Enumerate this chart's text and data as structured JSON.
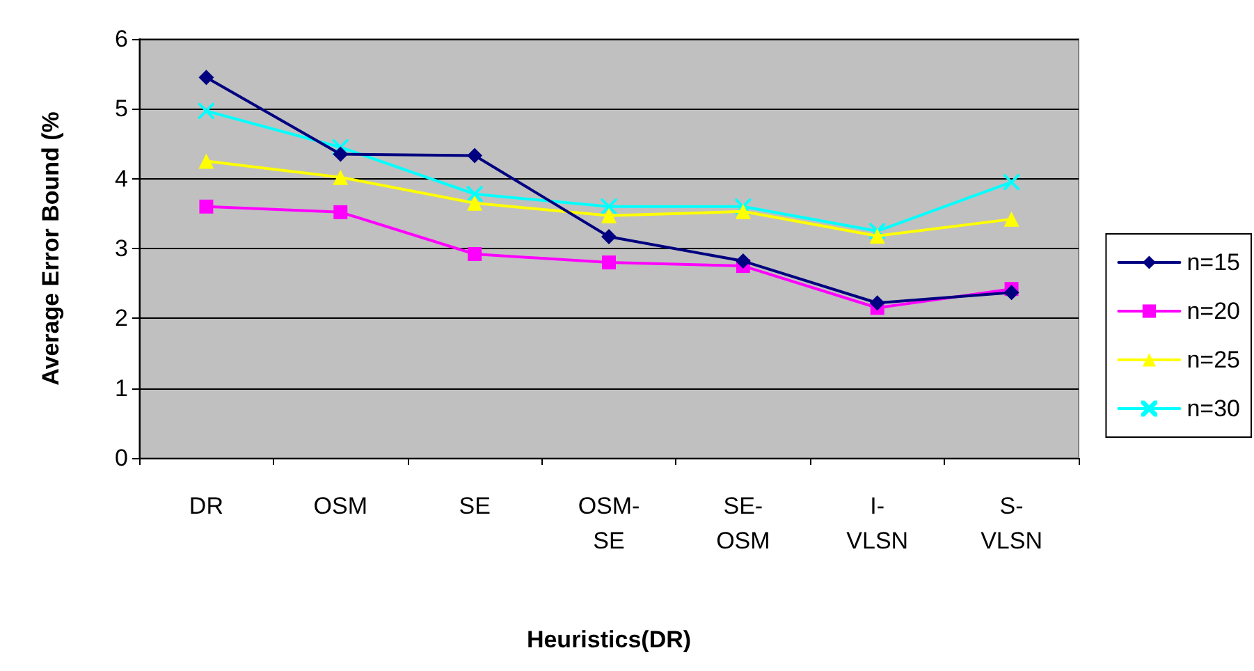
{
  "chart_data": {
    "type": "line",
    "xlabel": "Heuristics(DR)",
    "ylabel": "Average Error Bound (%",
    "categories": [
      "DR",
      "OSM",
      "SE",
      "OSM-SE",
      "SE-OSM",
      "I-VLSN",
      "S-VLSN"
    ],
    "series": [
      {
        "name": "n=15",
        "color": "#000080",
        "marker": "diamond",
        "values": [
          5.45,
          4.35,
          4.33,
          3.17,
          2.82,
          2.22,
          2.37
        ]
      },
      {
        "name": "n=20",
        "color": "#ff00ff",
        "marker": "square",
        "values": [
          3.6,
          3.52,
          2.92,
          2.8,
          2.75,
          2.15,
          2.42
        ]
      },
      {
        "name": "n=25",
        "color": "#ffff00",
        "marker": "triangle",
        "values": [
          4.25,
          4.02,
          3.65,
          3.47,
          3.53,
          3.18,
          3.42
        ]
      },
      {
        "name": "n=30",
        "color": "#00ffff",
        "marker": "cross",
        "values": [
          4.97,
          4.45,
          3.78,
          3.6,
          3.6,
          3.25,
          3.95
        ]
      }
    ],
    "ylim": [
      0,
      6
    ],
    "yticks": [
      0,
      1,
      2,
      3,
      4,
      5,
      6
    ],
    "grid": "y",
    "legend": "right"
  }
}
